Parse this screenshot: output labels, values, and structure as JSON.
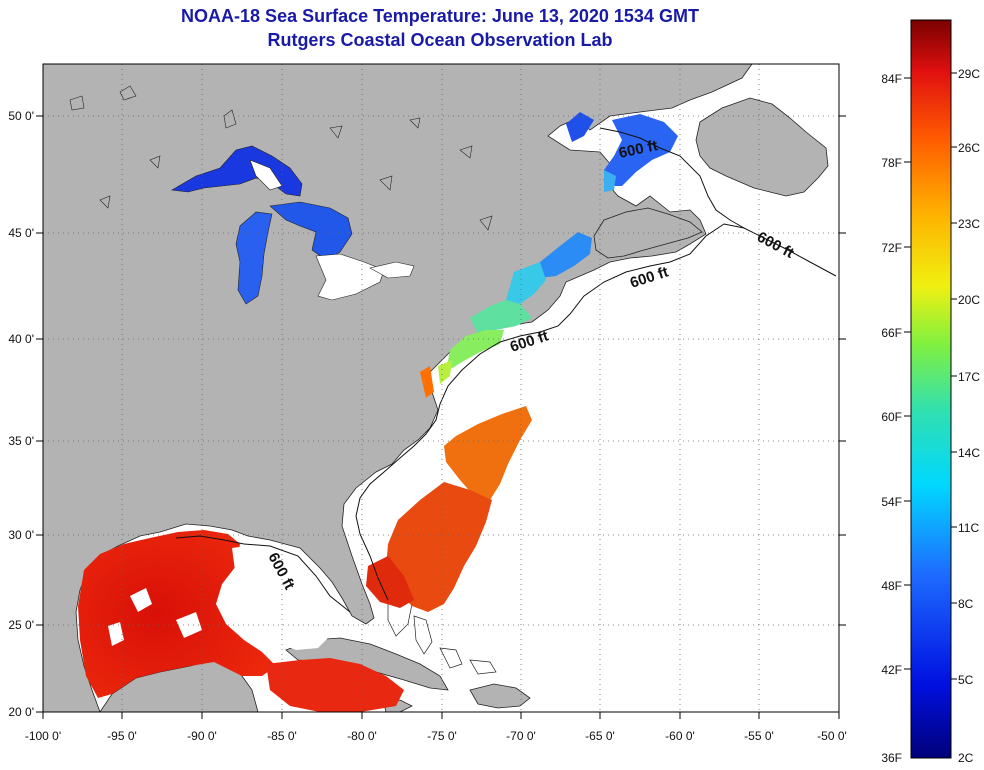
{
  "title": "NOAA-18 Sea Surface Temperature:  June 13, 2020 1534 GMT",
  "subtitle": "Rutgers Coastal Ocean Observation Lab",
  "axes": {
    "lon_labels": [
      "-100 0'",
      "-95 0'",
      "-90 0'",
      "-85 0'",
      "-80 0'",
      "-75 0'",
      "-70 0'",
      "-65 0'",
      "-60 0'",
      "-55 0'",
      "-50 0'"
    ],
    "lat_labels": [
      "50 0'",
      "45 0'",
      "40 0'",
      "35 0'",
      "30 0'",
      "25 0'",
      "20 0'"
    ]
  },
  "contour_label": "600 ft",
  "colorbar": {
    "fahrenheit": [
      "84F",
      "78F",
      "72F",
      "66F",
      "60F",
      "54F",
      "48F",
      "42F",
      "36F"
    ],
    "celsius": [
      "29C",
      "26C",
      "23C",
      "20C",
      "17C",
      "14C",
      "11C",
      "8C",
      "5C",
      "2C"
    ]
  },
  "colors": {
    "land": "#b3b3b3",
    "ocean": "#ffffff",
    "title": "#1a1aa8",
    "warm": "#e0200e",
    "cold": "#1f3ee0"
  }
}
